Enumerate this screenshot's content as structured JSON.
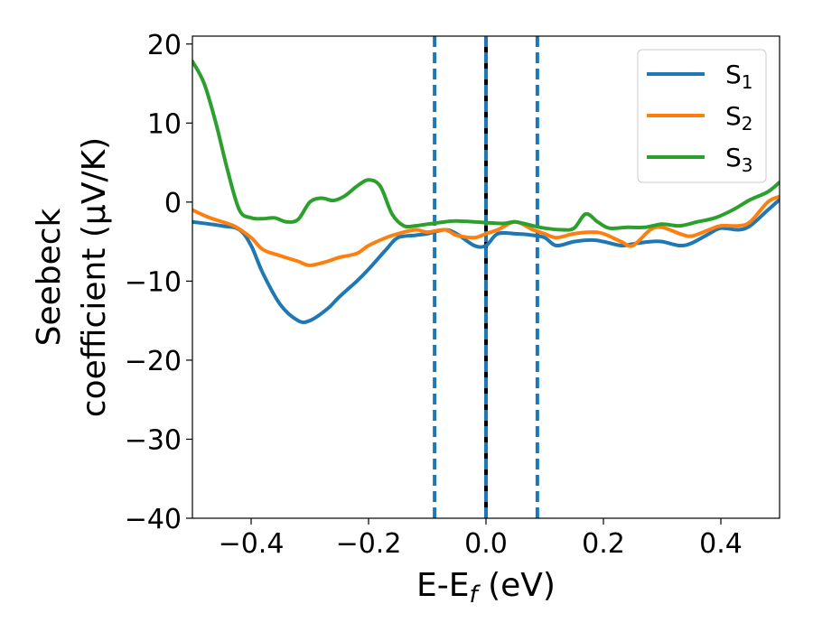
{
  "chart_data": {
    "type": "line",
    "xlabel": "E-E",
    "xlabel_sub": "f",
    "xlabel_unit": " (eV)",
    "ylabel_line1": "Seebeck",
    "ylabel_line2": "coefficient  (μV/K)",
    "xlim": [
      -0.5,
      0.5
    ],
    "ylim": [
      -40,
      21
    ],
    "xticks": [
      -0.4,
      -0.2,
      0.0,
      0.2,
      0.4
    ],
    "xtick_labels": [
      "−0.4",
      "−0.2",
      "0.0",
      "0.2",
      "0.4"
    ],
    "yticks": [
      -40,
      -30,
      -20,
      -10,
      0,
      10,
      20
    ],
    "ytick_labels": [
      "−40",
      "−30",
      "−20",
      "−10",
      "0",
      "10",
      "20"
    ],
    "grid": false,
    "legend_position": "top-right",
    "vlines": [
      {
        "x": 0.0,
        "style": "solid",
        "color": "#000000"
      },
      {
        "x": -0.0875,
        "style": "dashed",
        "color": "#1f77b4"
      },
      {
        "x": 0.0,
        "style": "dashed",
        "color": "#1f77b4"
      },
      {
        "x": 0.0875,
        "style": "dashed",
        "color": "#1f77b4"
      }
    ],
    "series": [
      {
        "name": "S",
        "sub": "1",
        "color": "#1f77b4",
        "x": [
          -0.5,
          -0.45,
          -0.42,
          -0.4,
          -0.38,
          -0.35,
          -0.32,
          -0.3,
          -0.27,
          -0.25,
          -0.22,
          -0.2,
          -0.17,
          -0.15,
          -0.12,
          -0.1,
          -0.07,
          -0.05,
          -0.02,
          0.0,
          0.02,
          0.05,
          0.08,
          0.1,
          0.12,
          0.15,
          0.18,
          0.2,
          0.23,
          0.25,
          0.28,
          0.3,
          0.33,
          0.35,
          0.38,
          0.4,
          0.43,
          0.45,
          0.48,
          0.5
        ],
        "y": [
          -2.5,
          -3.0,
          -3.5,
          -5.5,
          -9.0,
          -13.0,
          -15.0,
          -15.0,
          -13.5,
          -12.0,
          -10.0,
          -8.5,
          -6.0,
          -4.5,
          -4.2,
          -4.0,
          -3.5,
          -4.0,
          -5.5,
          -5.5,
          -4.0,
          -4.0,
          -4.2,
          -4.5,
          -5.5,
          -5.0,
          -4.8,
          -5.0,
          -5.5,
          -5.3,
          -5.0,
          -5.0,
          -5.5,
          -5.2,
          -4.0,
          -3.3,
          -3.5,
          -3.0,
          -1.0,
          0.3
        ]
      },
      {
        "name": "S",
        "sub": "2",
        "color": "#ff7f0e",
        "x": [
          -0.5,
          -0.47,
          -0.43,
          -0.4,
          -0.38,
          -0.35,
          -0.32,
          -0.3,
          -0.27,
          -0.25,
          -0.22,
          -0.2,
          -0.17,
          -0.15,
          -0.12,
          -0.1,
          -0.07,
          -0.05,
          -0.02,
          0.0,
          0.02,
          0.05,
          0.08,
          0.1,
          0.12,
          0.15,
          0.18,
          0.2,
          0.23,
          0.25,
          0.28,
          0.3,
          0.33,
          0.35,
          0.38,
          0.4,
          0.43,
          0.45,
          0.48,
          0.5
        ],
        "y": [
          -1.0,
          -2.0,
          -3.0,
          -4.5,
          -6.0,
          -6.8,
          -7.5,
          -8.0,
          -7.5,
          -7.0,
          -6.5,
          -5.5,
          -4.5,
          -4.0,
          -3.5,
          -3.8,
          -3.5,
          -4.2,
          -4.5,
          -4.0,
          -3.5,
          -2.5,
          -3.5,
          -4.0,
          -4.5,
          -4.0,
          -3.8,
          -4.0,
          -5.0,
          -5.5,
          -3.5,
          -3.2,
          -4.0,
          -4.3,
          -3.5,
          -3.0,
          -3.0,
          -2.5,
          0.0,
          0.7
        ]
      },
      {
        "name": "S",
        "sub": "3",
        "color": "#2ca02c",
        "x": [
          -0.5,
          -0.48,
          -0.46,
          -0.44,
          -0.42,
          -0.4,
          -0.38,
          -0.36,
          -0.34,
          -0.32,
          -0.3,
          -0.28,
          -0.26,
          -0.24,
          -0.22,
          -0.2,
          -0.18,
          -0.16,
          -0.14,
          -0.12,
          -0.1,
          -0.07,
          -0.05,
          -0.02,
          0.0,
          0.03,
          0.05,
          0.08,
          0.1,
          0.13,
          0.15,
          0.17,
          0.19,
          0.21,
          0.24,
          0.27,
          0.3,
          0.33,
          0.36,
          0.39,
          0.42,
          0.45,
          0.48,
          0.5
        ],
        "y": [
          17.8,
          15.0,
          10.0,
          4.0,
          -1.0,
          -2.0,
          -2.1,
          -2.0,
          -2.5,
          -2.2,
          0.0,
          0.5,
          0.2,
          0.8,
          2.0,
          2.8,
          2.0,
          -1.5,
          -3.0,
          -3.0,
          -2.8,
          -2.5,
          -2.4,
          -2.5,
          -2.6,
          -2.7,
          -2.5,
          -3.0,
          -3.3,
          -3.5,
          -3.3,
          -1.5,
          -2.5,
          -3.3,
          -3.2,
          -3.2,
          -2.8,
          -3.0,
          -2.5,
          -2.0,
          -1.0,
          0.3,
          1.3,
          2.5
        ]
      }
    ]
  }
}
